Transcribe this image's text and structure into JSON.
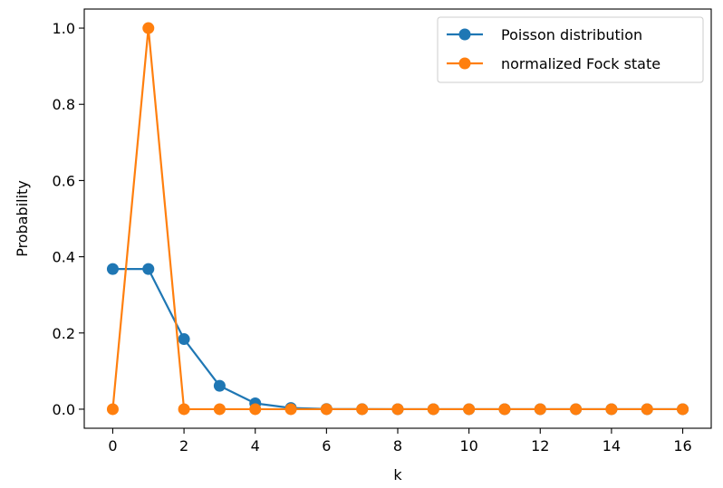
{
  "chart_data": {
    "type": "line",
    "title": "",
    "xlabel": "k",
    "ylabel": "Probability",
    "xlim": [
      -0.8,
      16.8
    ],
    "ylim": [
      -0.05,
      1.05
    ],
    "x": [
      0,
      1,
      2,
      3,
      4,
      5,
      6,
      7,
      8,
      9,
      10,
      11,
      12,
      13,
      14,
      15,
      16
    ],
    "x_ticks": [
      "0",
      "2",
      "4",
      "6",
      "8",
      "10",
      "12",
      "14",
      "16"
    ],
    "y_ticks": [
      "0.0",
      "0.2",
      "0.4",
      "0.6",
      "0.8",
      "1.0"
    ],
    "grid": false,
    "legend_position": "top-right",
    "series": [
      {
        "name": "Poisson distribution",
        "color": "#1f77b4",
        "marker": "circle",
        "values": [
          0.3679,
          0.3679,
          0.1839,
          0.0613,
          0.0153,
          0.0031,
          0.0005,
          0.0001,
          0.0,
          0.0,
          0.0,
          0.0,
          0.0,
          0.0,
          0.0,
          0.0,
          0.0
        ]
      },
      {
        "name": "normalized Fock state",
        "color": "#ff7f0e",
        "marker": "circle",
        "values": [
          0,
          1,
          0,
          0,
          0,
          0,
          0,
          0,
          0,
          0,
          0,
          0,
          0,
          0,
          0,
          0,
          0
        ]
      }
    ]
  }
}
